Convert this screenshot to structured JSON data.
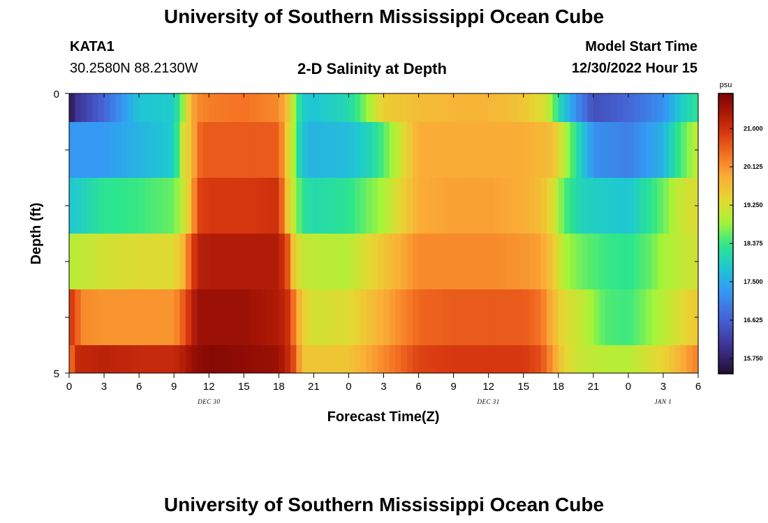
{
  "header": {
    "title": "University of Southern Mississippi Ocean Cube",
    "station": "KATA1",
    "coords": "30.2580N  88.2130W",
    "plot_title": "2-D Salinity at Depth",
    "start_label": "Model Start Time",
    "start_value": "12/30/2022 Hour 15"
  },
  "footer": {
    "title": "University of Southern Mississippi Ocean Cube"
  },
  "chart_data": {
    "type": "heatmap",
    "title": "2-D Salinity at Depth",
    "xlabel": "Forecast Time(Z)",
    "ylabel": "Depth (ft)",
    "xlim": [
      0,
      54
    ],
    "ylim": [
      0,
      5
    ],
    "y_tick_labels": [
      "0",
      "5"
    ],
    "x_ticks": [
      0,
      3,
      6,
      9,
      12,
      15,
      18,
      21,
      24,
      27,
      30,
      33,
      36,
      39,
      42,
      45,
      48,
      51,
      54
    ],
    "x_tick_labels": [
      "0",
      "3",
      "6",
      "9",
      "12",
      "15",
      "18",
      "21",
      "0",
      "3",
      "6",
      "9",
      "12",
      "15",
      "18",
      "21",
      "0",
      "3",
      "6"
    ],
    "date_labels": [
      {
        "label": "DEC 30",
        "hour": 12
      },
      {
        "label": "DEC 31",
        "hour": 36
      },
      {
        "label": "JAN 1",
        "hour": 51
      }
    ],
    "colorbar": {
      "unit": "psu",
      "min": 15.4,
      "max": 21.8,
      "ticks": [
        15.75,
        16.625,
        17.5,
        18.375,
        19.25,
        20.125,
        21.0
      ],
      "tick_labels": [
        "15.750",
        "16.625",
        "17.500",
        "18.375",
        "19.250",
        "20.125",
        "21.000"
      ]
    },
    "depth_rows": [
      {
        "depth": "0.0-0.5",
        "hours": [
          0,
          0.5,
          3,
          6,
          9,
          9.8,
          10.5,
          11.2,
          12,
          15,
          18,
          18.8,
          19.2,
          19.7,
          20,
          21,
          24,
          25,
          27,
          30,
          33,
          36,
          39,
          41,
          42.2,
          43.5,
          45,
          48,
          51,
          52.5,
          54
        ],
        "values": [
          15.45,
          16.0,
          16.7,
          17.8,
          17.9,
          18.8,
          19.9,
          20.2,
          20.3,
          20.4,
          20.2,
          19.6,
          19.0,
          18.3,
          17.9,
          17.8,
          18.1,
          18.5,
          19.5,
          19.7,
          19.8,
          19.8,
          19.6,
          19.2,
          18.0,
          17.2,
          16.4,
          16.7,
          17.2,
          17.9,
          18.3
        ]
      },
      {
        "depth": "0.5-1.5",
        "hours": [
          0,
          3,
          6,
          9,
          9.8,
          10.5,
          11,
          11.5,
          12,
          15,
          18,
          18.8,
          19.3,
          19.8,
          20.5,
          24,
          26,
          27,
          30,
          33,
          36,
          39,
          41.5,
          42.5,
          44,
          45,
          48,
          51,
          52,
          54
        ],
        "values": [
          17.3,
          17.3,
          17.6,
          17.9,
          19.3,
          19.6,
          20.4,
          20.6,
          20.6,
          20.6,
          20.6,
          19.4,
          18.8,
          18.0,
          17.6,
          17.7,
          18.1,
          18.5,
          19.9,
          19.9,
          19.9,
          19.9,
          19.7,
          19.0,
          17.9,
          17.2,
          17.0,
          17.6,
          18.2,
          19.1
        ]
      },
      {
        "depth": "1.5-2.5",
        "hours": [
          0,
          3,
          6,
          9,
          9.8,
          10.5,
          11,
          12,
          15,
          18,
          18.8,
          19.4,
          20,
          21,
          24,
          27,
          30,
          33,
          36,
          39,
          40.5,
          41.5,
          42.5,
          44,
          46,
          48,
          51,
          52,
          53,
          54
        ],
        "values": [
          17.8,
          18.3,
          18.4,
          18.6,
          19.1,
          19.7,
          20.8,
          20.9,
          20.9,
          21.0,
          19.5,
          18.9,
          18.3,
          18.1,
          18.3,
          18.9,
          19.9,
          20.0,
          20.0,
          19.9,
          19.7,
          19.3,
          18.5,
          18.0,
          17.9,
          17.8,
          18.6,
          19.0,
          19.2,
          19.3
        ]
      },
      {
        "depth": "2.5-3.5",
        "hours": [
          0,
          3,
          6,
          9,
          9.8,
          10.5,
          11,
          12,
          15,
          18,
          18.8,
          19.3,
          20,
          22,
          24,
          27,
          30,
          33,
          36,
          39,
          40.5,
          41.5,
          42.5,
          44,
          46,
          48,
          50,
          51,
          53,
          54
        ],
        "values": [
          19.0,
          19.2,
          19.3,
          19.3,
          19.8,
          20.7,
          21.2,
          21.3,
          21.3,
          21.3,
          20.6,
          19.5,
          19.1,
          19.0,
          19.0,
          19.6,
          20.2,
          20.2,
          20.2,
          20.1,
          20.0,
          19.6,
          18.9,
          18.6,
          18.4,
          18.3,
          18.6,
          18.9,
          19.1,
          19.2
        ]
      },
      {
        "depth": "3.5-4.5",
        "hours": [
          0,
          0.5,
          1,
          3,
          6,
          9,
          9.8,
          10.5,
          11,
          12,
          15,
          18,
          18.8,
          19.6,
          20,
          21,
          24,
          27,
          30,
          33,
          36,
          39,
          40.5,
          41.5,
          42.5,
          44,
          46,
          48,
          51,
          54
        ],
        "values": [
          20.9,
          20.8,
          20.2,
          20.1,
          20.1,
          20.1,
          20.6,
          21.1,
          21.5,
          21.5,
          21.5,
          21.3,
          21.0,
          20.0,
          19.5,
          19.2,
          19.3,
          19.9,
          20.5,
          20.6,
          20.6,
          20.6,
          20.4,
          19.8,
          19.3,
          19.1,
          18.5,
          18.4,
          19.0,
          19.6
        ]
      },
      {
        "depth": "4.5-5.0",
        "hours": [
          0,
          0.5,
          3,
          6,
          9,
          10,
          10.5,
          11,
          12,
          15,
          18,
          19,
          19.5,
          20,
          24,
          27,
          30,
          33,
          36,
          39,
          40.5,
          41.5,
          42.5,
          44,
          46,
          48,
          51,
          53,
          54
        ],
        "values": [
          20.0,
          21.1,
          21.2,
          21.1,
          21.1,
          21.3,
          21.5,
          21.6,
          21.7,
          21.6,
          21.5,
          21.0,
          20.5,
          19.6,
          19.6,
          20.2,
          20.8,
          20.9,
          20.9,
          20.9,
          20.7,
          20.1,
          19.4,
          19.1,
          19.0,
          19.0,
          19.4,
          20.0,
          20.3
        ]
      }
    ]
  }
}
